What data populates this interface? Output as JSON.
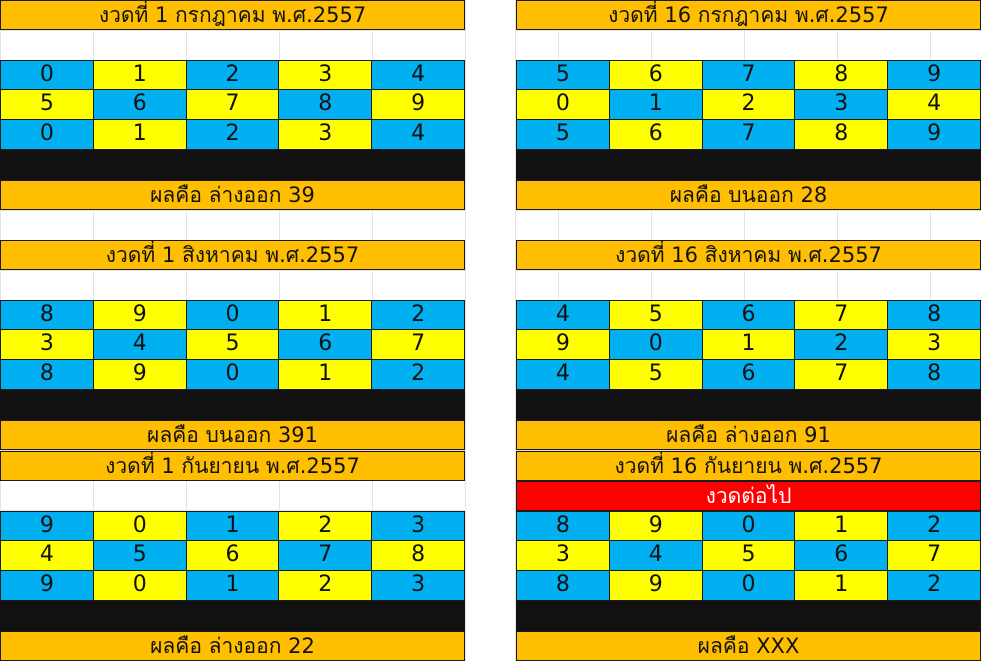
{
  "colors": {
    "orange": "#ffbf00",
    "blue": "#00b0f0",
    "yellow": "#ffff00",
    "black": "#111111",
    "red": "#ff0000"
  },
  "blocks": [
    {
      "title": "งวดที่ 1 กรกฎาคม พ.ศ.2557",
      "rows": [
        [
          "0",
          "1",
          "2",
          "3",
          "4"
        ],
        [
          "5",
          "6",
          "7",
          "8",
          "9"
        ],
        [
          "0",
          "1",
          "2",
          "3",
          "4"
        ]
      ],
      "pattern": "blue-first",
      "result": "ผลคือ ล่างออก 39"
    },
    {
      "title": "งวดที่ 16 กรกฎาคม พ.ศ.2557",
      "rows": [
        [
          "5",
          "6",
          "7",
          "8",
          "9"
        ],
        [
          "0",
          "1",
          "2",
          "3",
          "4"
        ],
        [
          "5",
          "6",
          "7",
          "8",
          "9"
        ]
      ],
      "pattern": "blue-first",
      "result": "ผลคือ บนออก 28"
    },
    {
      "title": "งวดที่ 1 สิงหาคม พ.ศ.2557",
      "rows": [
        [
          "8",
          "9",
          "0",
          "1",
          "2"
        ],
        [
          "3",
          "4",
          "5",
          "6",
          "7"
        ],
        [
          "8",
          "9",
          "0",
          "1",
          "2"
        ]
      ],
      "pattern": "blue-first",
      "result": "ผลคือ บนออก 391"
    },
    {
      "title": "งวดที่ 16 สิงหาคม พ.ศ.2557",
      "rows": [
        [
          "4",
          "5",
          "6",
          "7",
          "8"
        ],
        [
          "9",
          "0",
          "1",
          "2",
          "3"
        ],
        [
          "4",
          "5",
          "6",
          "7",
          "8"
        ]
      ],
      "pattern": "blue-first",
      "result": "ผลคือ ล่างออก 91"
    },
    {
      "title": "งวดที่ 1 กันยายน พ.ศ.2557",
      "rows": [
        [
          "9",
          "0",
          "1",
          "2",
          "3"
        ],
        [
          "4",
          "5",
          "6",
          "7",
          "8"
        ],
        [
          "9",
          "0",
          "1",
          "2",
          "3"
        ]
      ],
      "pattern": "blue-first",
      "result": "ผลคือ ล่างออก 22"
    },
    {
      "title": "งวดที่ 16 กันยายน พ.ศ.2557",
      "next_label": "งวดต่อไป",
      "rows": [
        [
          "8",
          "9",
          "0",
          "1",
          "2"
        ],
        [
          "3",
          "4",
          "5",
          "6",
          "7"
        ],
        [
          "8",
          "9",
          "0",
          "1",
          "2"
        ]
      ],
      "pattern": "blue-first",
      "result": "ผลคือ XXX"
    }
  ]
}
